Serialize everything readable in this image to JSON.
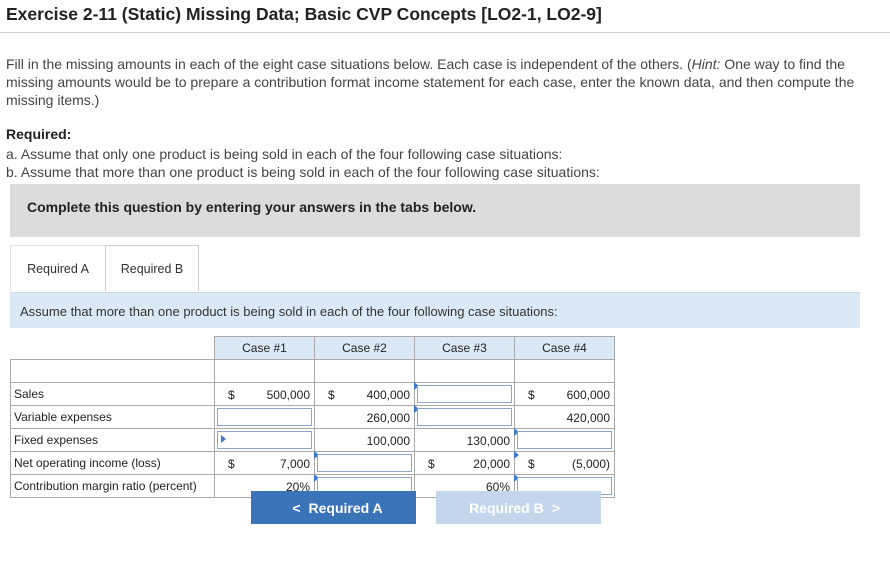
{
  "page": {
    "title": "Exercise 2-11 (Static) Missing Data; Basic CVP Concepts [LO2-1, LO2-9]",
    "intro_before_hint": "Fill in the missing amounts in each of the eight case situations below. Each case is independent of the others. (",
    "hint_label": "Hint:",
    "intro_after_hint": " One way to find the missing amounts would be to prepare a contribution format income statement for each case, enter the known data, and then compute the missing items.)",
    "required_title": "Required:",
    "required_a": "a. Assume that only one product is being sold in each of the four following case situations:",
    "required_b": "b. Assume that more than one product is being sold in each of the four following case situations:",
    "banner": "Complete this question by entering your answers in the tabs below."
  },
  "tabs": {
    "a": "Required A",
    "b": "Required B"
  },
  "instruction": "Assume that more than one product is being sold in each of the four following case situations:",
  "table": {
    "headers": [
      "Case #1",
      "Case #2",
      "Case #3",
      "Case #4"
    ],
    "rows": {
      "sales": {
        "label": "Sales",
        "c1_dollar": "$",
        "c1": "500,000",
        "c2_dollar": "$",
        "c2": "400,000",
        "c4_dollar": "$",
        "c4": "600,000"
      },
      "variable": {
        "label": "Variable expenses",
        "c2": "260,000",
        "c4": "420,000"
      },
      "fixed": {
        "label": "Fixed expenses",
        "c2": "100,000",
        "c3": "130,000"
      },
      "noi": {
        "label": "Net operating income (loss)",
        "c1_dollar": "$",
        "c1": "7,000",
        "c3_dollar": "$",
        "c3": "20,000",
        "c4_dollar": "$",
        "c4": "(5,000)"
      },
      "cmr": {
        "label": "Contribution margin ratio (percent)",
        "c1": "20%",
        "c3": "60%"
      }
    }
  },
  "buttons": {
    "prev": "Required A",
    "next": "Required B",
    "prev_chevron": "<",
    "next_chevron": ">"
  }
}
